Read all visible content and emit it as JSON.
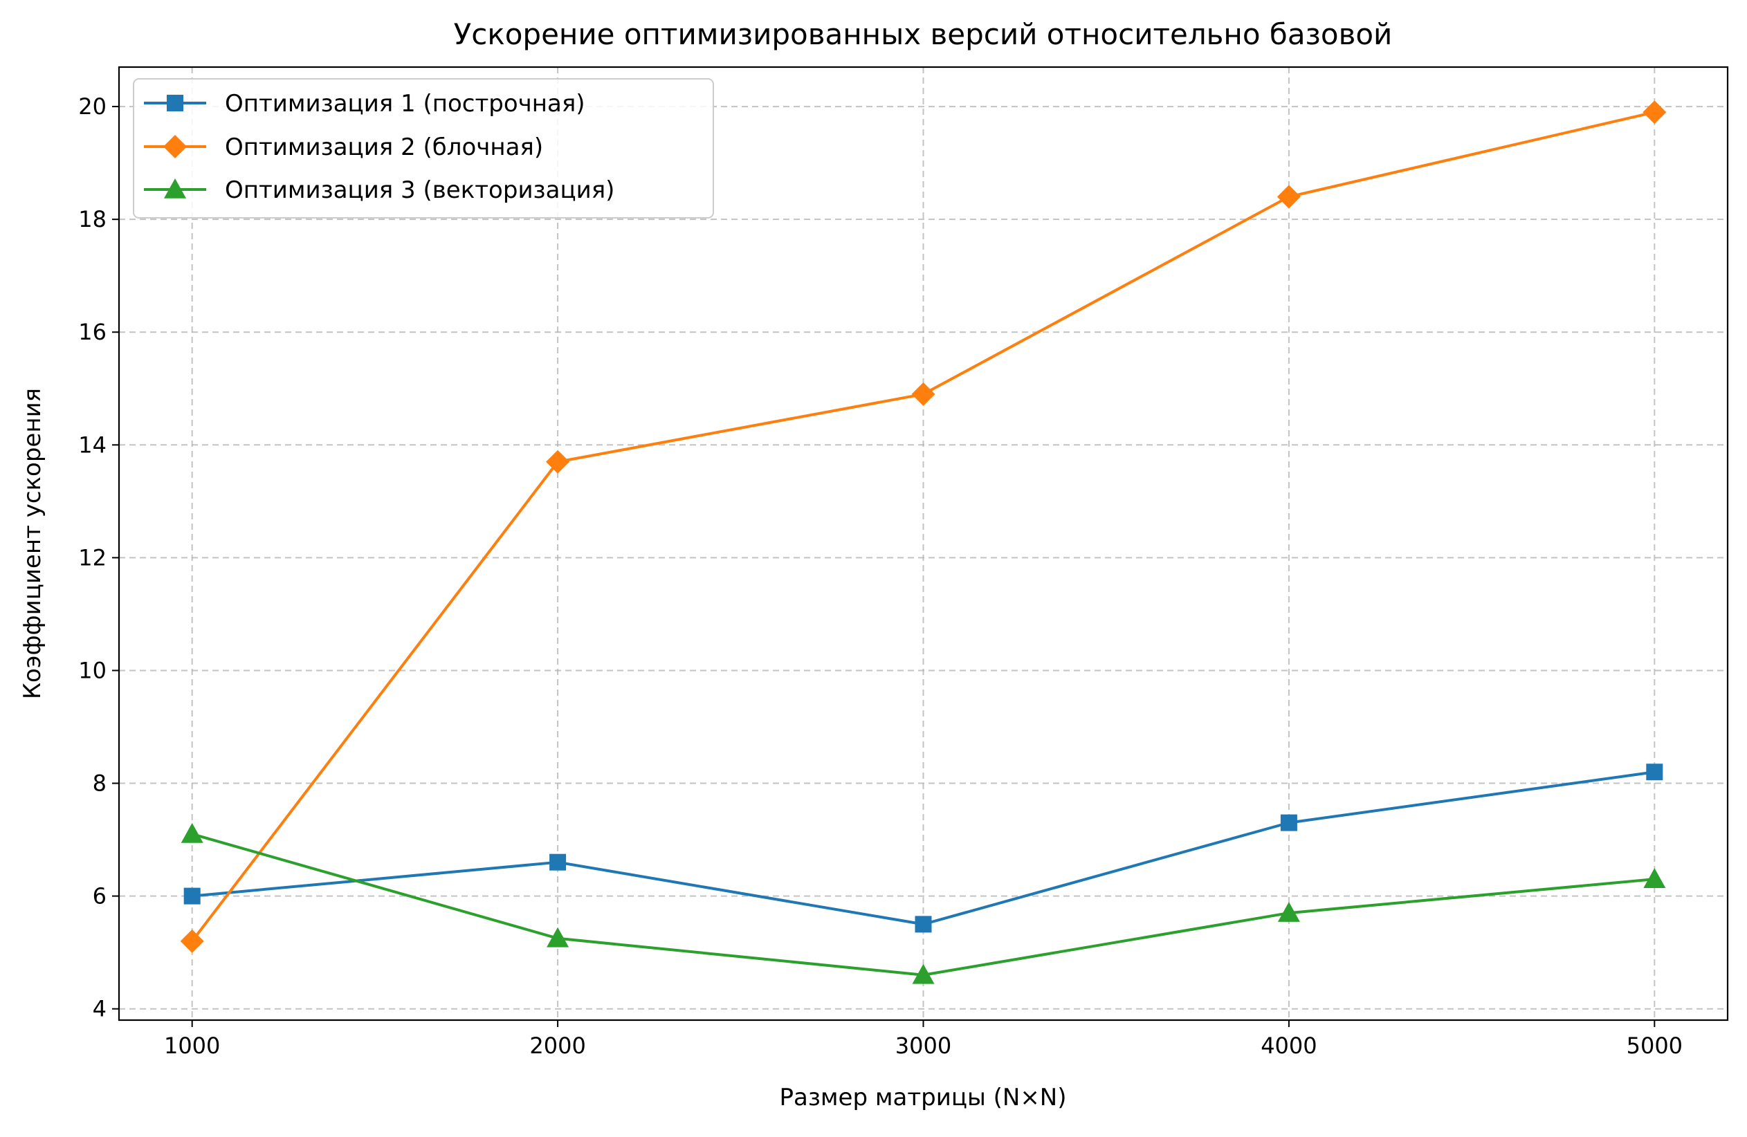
{
  "chart_data": {
    "type": "line",
    "title": "Ускорение оптимизированных версий относительно базовой",
    "xlabel": "Размер матрицы (N×N)",
    "ylabel": "Коэффициент ускорения",
    "x": [
      1000,
      2000,
      3000,
      4000,
      5000
    ],
    "x_tick_labels": [
      "1000",
      "2000",
      "3000",
      "4000",
      "5000"
    ],
    "y_ticks": [
      4,
      6,
      8,
      10,
      12,
      14,
      16,
      18,
      20
    ],
    "y_tick_labels": [
      "4",
      "6",
      "8",
      "10",
      "12",
      "14",
      "16",
      "18",
      "20"
    ],
    "xlim": [
      800,
      5200
    ],
    "ylim": [
      3.8,
      20.7
    ],
    "grid": true,
    "legend_position": "top-left",
    "series": [
      {
        "name": "Оптимизация 1 (построчная)",
        "values": [
          6.0,
          6.6,
          5.5,
          7.3,
          8.2
        ],
        "color": "#1f77b4",
        "marker": "square"
      },
      {
        "name": "Оптимизация 2 (блочная)",
        "values": [
          5.2,
          13.7,
          14.9,
          18.4,
          19.9
        ],
        "color": "#ff7f0e",
        "marker": "diamond"
      },
      {
        "name": "Оптимизация 3 (векторизация)",
        "values": [
          7.1,
          5.25,
          4.6,
          5.7,
          6.3
        ],
        "color": "#2ca02c",
        "marker": "triangle"
      }
    ]
  }
}
